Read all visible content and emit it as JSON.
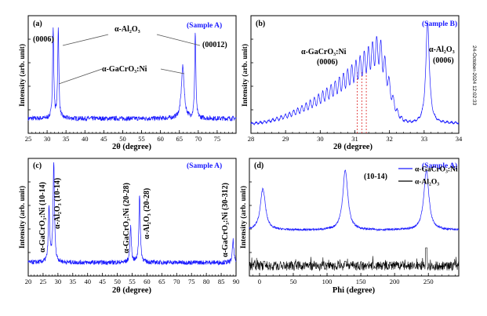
{
  "timestamp": "24-October-2024 12:02:33",
  "colors": {
    "main": "#1a1aff",
    "secondary": "#000000",
    "guides": "#dd2222",
    "panel_frame": "#000000"
  },
  "chart_data": [
    {
      "type": "line",
      "panel_label": "(a)",
      "sample": "(Sample A)",
      "xlabel": "2θ (degree)",
      "ylabel": "Intensity (arb. unit)",
      "xlim": [
        25,
        80
      ],
      "x_ticks": [
        "25",
        "30",
        "35",
        "40",
        "45",
        "50",
        "55",
        "60",
        "65",
        "70",
        "75"
      ],
      "scale": "log",
      "series": [
        {
          "values": [
            [
              31.6,
              1.0
            ],
            [
              32.95,
              1.0
            ],
            [
              65.9,
              0.62
            ],
            [
              69.2,
              0.95
            ]
          ]
        }
      ],
      "annotations": [
        {
          "text": "(0006)",
          "x": 31.6
        },
        {
          "text": "(00012)",
          "x": 69.2
        },
        {
          "text": "α-Al₂O₃"
        },
        {
          "text": "α-GaCrO₃:Ni"
        }
      ]
    },
    {
      "type": "line",
      "panel_label": "(b)",
      "sample": "(Sample B)",
      "xlabel": "2θ (degree)",
      "ylabel": "Intensity (arb. unit)",
      "xlim": [
        28,
        34
      ],
      "x_ticks": [
        "28",
        "29",
        "30",
        "31",
        "32",
        "33",
        "34"
      ],
      "series": [
        {
          "values": [
            [
              28.0,
              0.08
            ],
            [
              29.0,
              0.18
            ],
            [
              30.0,
              0.33
            ],
            [
              30.8,
              0.48
            ],
            [
              31.3,
              0.62
            ],
            [
              31.65,
              0.72
            ],
            [
              32.0,
              0.4
            ],
            [
              32.5,
              0.12
            ],
            [
              33.0,
              0.55
            ],
            [
              33.1,
              1.0
            ],
            [
              33.3,
              0.25
            ],
            [
              34.0,
              0.03
            ]
          ]
        }
      ],
      "guide_lines_x": [
        31.07,
        31.2,
        31.33
      ],
      "annotations": [
        {
          "text": "α-GaCrO₃:Ni"
        },
        {
          "text": "(0006)"
        },
        {
          "text": "α-Al₂O₃"
        },
        {
          "text": "(0006)"
        }
      ]
    },
    {
      "type": "line",
      "panel_label": "(c)",
      "sample": "(Sample A)",
      "xlabel": "2θ (degree)",
      "ylabel": "Intensity (arb. unit)",
      "xlim": [
        20,
        90
      ],
      "x_ticks": [
        "20",
        "25",
        "30",
        "35",
        "40",
        "45",
        "50",
        "55",
        "60",
        "65",
        "70",
        "75",
        "80",
        "85",
        "90"
      ],
      "scale": "log",
      "series": [
        {
          "values": [
            [
              27.0,
              0.58
            ],
            [
              28.6,
              1.0
            ],
            [
              54.5,
              0.42
            ],
            [
              57.5,
              0.7
            ],
            [
              89.0,
              0.3
            ]
          ]
        }
      ],
      "annotations": [
        {
          "text": "α-GaCrO₃:Ni (10-14)",
          "x": 27.0
        },
        {
          "text": "α-Al₂O₃ (10-14)",
          "x": 28.6
        },
        {
          "text": "α-GaCrO₃:Ni (20-28)",
          "x": 54.5
        },
        {
          "text": "α-Al₂O₃ (20-28)",
          "x": 57.5
        },
        {
          "text": "α-GaCrO₃:Ni (30-312)",
          "x": 89.0
        }
      ]
    },
    {
      "type": "line",
      "panel_label": "(d)",
      "sample": "(Sample A)",
      "xlabel": "Phi (degree)",
      "ylabel": "Intensity (arb. unit)",
      "xlim": [
        -15,
        295
      ],
      "x_ticks": [
        "0",
        "50",
        "100",
        "150",
        "200",
        "250"
      ],
      "series": [
        {
          "name": "α-GaCrO₃:Ni",
          "values": [
            [
              5,
              0.82
            ],
            [
              127,
              1.0
            ],
            [
              247,
              1.0
            ]
          ]
        },
        {
          "name": "α-Al₂O₃",
          "values": [
            [
              7,
              0.12
            ],
            [
              127,
              0.12
            ],
            [
              247,
              0.25
            ]
          ]
        }
      ],
      "annotations": [
        {
          "text": "(10-14)"
        }
      ]
    }
  ]
}
